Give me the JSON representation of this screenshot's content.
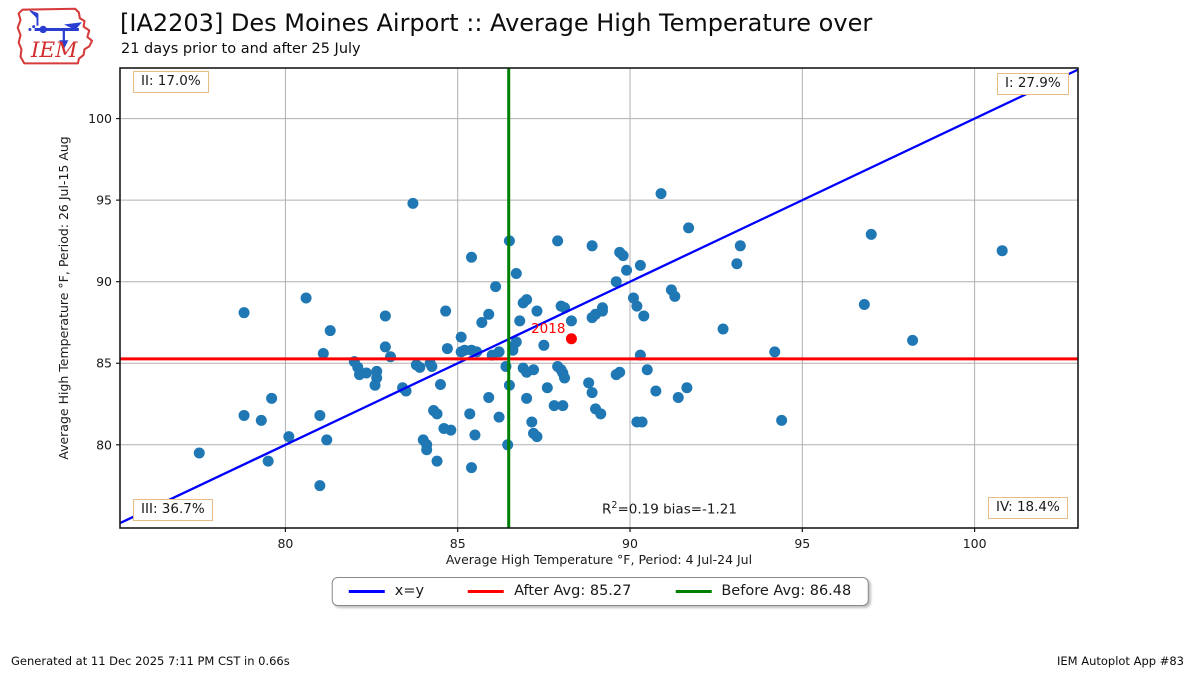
{
  "header": {
    "title": "[IA2203] Des Moines Airport :: Average High Temperature over",
    "subtitle": "21 days prior to and after 25 July",
    "logo_text": "IEM"
  },
  "chart_data": {
    "type": "scatter",
    "xlabel": "Average High Temperature °F, Period: 4 Jul-24 Jul",
    "ylabel": "Average High Temperature °F, Period: 26 Jul-15 Aug",
    "xlim": [
      75.2,
      103.0
    ],
    "ylim": [
      74.9,
      103.1
    ],
    "xticks": [
      80,
      85,
      90,
      95,
      100
    ],
    "yticks": [
      80,
      85,
      90,
      95,
      100
    ],
    "grid": true,
    "point_color": "#1f77b4",
    "points": [
      [
        83.7,
        94.8
      ],
      [
        80.6,
        89.0
      ],
      [
        90.9,
        95.4
      ],
      [
        91.7,
        93.3
      ],
      [
        86.5,
        92.5
      ],
      [
        87.9,
        92.5
      ],
      [
        88.9,
        92.2
      ],
      [
        89.7,
        91.8
      ],
      [
        89.8,
        91.6
      ],
      [
        85.4,
        91.5
      ],
      [
        93.2,
        92.2
      ],
      [
        93.1,
        91.1
      ],
      [
        90.3,
        91.0
      ],
      [
        89.9,
        90.7
      ],
      [
        86.7,
        90.5
      ],
      [
        89.6,
        90.0
      ],
      [
        86.1,
        89.7
      ],
      [
        91.2,
        89.5
      ],
      [
        91.3,
        89.1
      ],
      [
        97.0,
        92.9
      ],
      [
        100.8,
        91.9
      ],
      [
        89.2,
        88.4
      ],
      [
        90.1,
        89.0
      ],
      [
        90.2,
        88.5
      ],
      [
        90.4,
        87.9
      ],
      [
        92.7,
        87.1
      ],
      [
        78.8,
        88.1
      ],
      [
        82.9,
        87.9
      ],
      [
        81.3,
        87.0
      ],
      [
        81.1,
        85.6
      ],
      [
        82.9,
        86.0
      ],
      [
        83.05,
        85.4
      ],
      [
        82.0,
        85.1
      ],
      [
        82.1,
        84.75
      ],
      [
        82.15,
        84.3
      ],
      [
        82.35,
        84.4
      ],
      [
        82.65,
        84.5
      ],
      [
        82.65,
        84.1
      ],
      [
        82.6,
        83.65
      ],
      [
        83.4,
        83.5
      ],
      [
        83.5,
        83.3
      ],
      [
        83.8,
        84.9
      ],
      [
        83.9,
        84.75
      ],
      [
        84.2,
        85.0
      ],
      [
        84.25,
        84.8
      ],
      [
        84.3,
        82.1
      ],
      [
        84.4,
        81.9
      ],
      [
        84.0,
        80.3
      ],
      [
        84.1,
        80.0
      ],
      [
        84.1,
        79.7
      ],
      [
        84.4,
        79.0
      ],
      [
        79.6,
        82.85
      ],
      [
        78.8,
        81.8
      ],
      [
        79.3,
        81.5
      ],
      [
        81.0,
        81.8
      ],
      [
        80.1,
        80.5
      ],
      [
        81.2,
        80.3
      ],
      [
        77.5,
        79.5
      ],
      [
        79.5,
        79.0
      ],
      [
        81.0,
        77.5
      ],
      [
        84.65,
        88.2
      ],
      [
        85.1,
        86.6
      ],
      [
        85.7,
        87.5
      ],
      [
        85.9,
        88.0
      ],
      [
        84.7,
        85.9
      ],
      [
        85.1,
        85.7
      ],
      [
        85.2,
        85.8
      ],
      [
        85.4,
        85.8
      ],
      [
        85.55,
        85.7
      ],
      [
        86.0,
        85.5
      ],
      [
        86.2,
        85.7
      ],
      [
        86.6,
        86.0
      ],
      [
        86.7,
        86.3
      ],
      [
        86.6,
        85.8
      ],
      [
        86.9,
        88.7
      ],
      [
        87.0,
        88.9
      ],
      [
        87.3,
        88.2
      ],
      [
        86.8,
        87.6
      ],
      [
        88.0,
        88.5
      ],
      [
        88.1,
        88.4
      ],
      [
        88.3,
        87.6
      ],
      [
        87.5,
        86.1
      ],
      [
        88.9,
        87.8
      ],
      [
        89.0,
        88.0
      ],
      [
        89.2,
        88.2
      ],
      [
        90.3,
        85.5
      ],
      [
        90.5,
        84.6
      ],
      [
        89.7,
        84.45
      ],
      [
        89.6,
        84.3
      ],
      [
        87.9,
        84.8
      ],
      [
        88.0,
        84.6
      ],
      [
        88.05,
        84.4
      ],
      [
        88.1,
        84.1
      ],
      [
        86.9,
        84.7
      ],
      [
        87.0,
        84.45
      ],
      [
        87.2,
        84.6
      ],
      [
        86.4,
        84.8
      ],
      [
        86.5,
        83.65
      ],
      [
        87.0,
        82.85
      ],
      [
        87.6,
        83.5
      ],
      [
        87.8,
        82.4
      ],
      [
        88.05,
        82.4
      ],
      [
        87.15,
        81.4
      ],
      [
        87.2,
        80.7
      ],
      [
        87.3,
        80.5
      ],
      [
        86.45,
        80.0
      ],
      [
        85.4,
        78.6
      ],
      [
        88.8,
        83.8
      ],
      [
        88.9,
        83.2
      ],
      [
        89.0,
        82.2
      ],
      [
        89.15,
        81.9
      ],
      [
        90.2,
        81.4
      ],
      [
        90.35,
        81.4
      ],
      [
        90.75,
        83.3
      ],
      [
        91.4,
        82.9
      ],
      [
        91.65,
        83.5
      ],
      [
        85.35,
        81.9
      ],
      [
        85.5,
        80.6
      ],
      [
        85.9,
        82.9
      ],
      [
        86.2,
        81.7
      ],
      [
        96.8,
        88.6
      ],
      [
        98.2,
        86.4
      ],
      [
        94.2,
        85.7
      ],
      [
        94.4,
        81.5
      ],
      [
        84.5,
        83.7
      ],
      [
        84.6,
        81.0
      ],
      [
        84.8,
        80.9
      ]
    ],
    "highlight_point": {
      "x": 88.3,
      "y": 86.5,
      "label": "2018",
      "color": "#ff0000"
    },
    "lines": {
      "diagonal": {
        "label": "x=y",
        "color": "#0000ff"
      },
      "after_avg": {
        "label": "After Avg: 85.27",
        "value": 85.27,
        "color": "#ff0000"
      },
      "before_avg": {
        "label": "Before Avg: 86.48",
        "value": 86.48,
        "color": "#008000"
      }
    },
    "quadrant_labels": [
      {
        "text": "I: 27.9%"
      },
      {
        "text": "II: 17.0%"
      },
      {
        "text": "III: 36.7%"
      },
      {
        "text": "IV: 18.4%"
      }
    ],
    "annotation": {
      "prefix": "R",
      "sup": "2",
      "rest": "=0.19 bias=-1.21"
    }
  },
  "legend": {
    "items": [
      {
        "label": "x=y",
        "color": "#0000ff"
      },
      {
        "label": "After Avg: 85.27",
        "color": "#ff0000"
      },
      {
        "label": "Before Avg: 86.48",
        "color": "#008000"
      }
    ]
  },
  "footer": {
    "left": "Generated at 11 Dec 2025 7:11 PM CST in 0.66s",
    "right": "IEM Autoplot App #83"
  }
}
